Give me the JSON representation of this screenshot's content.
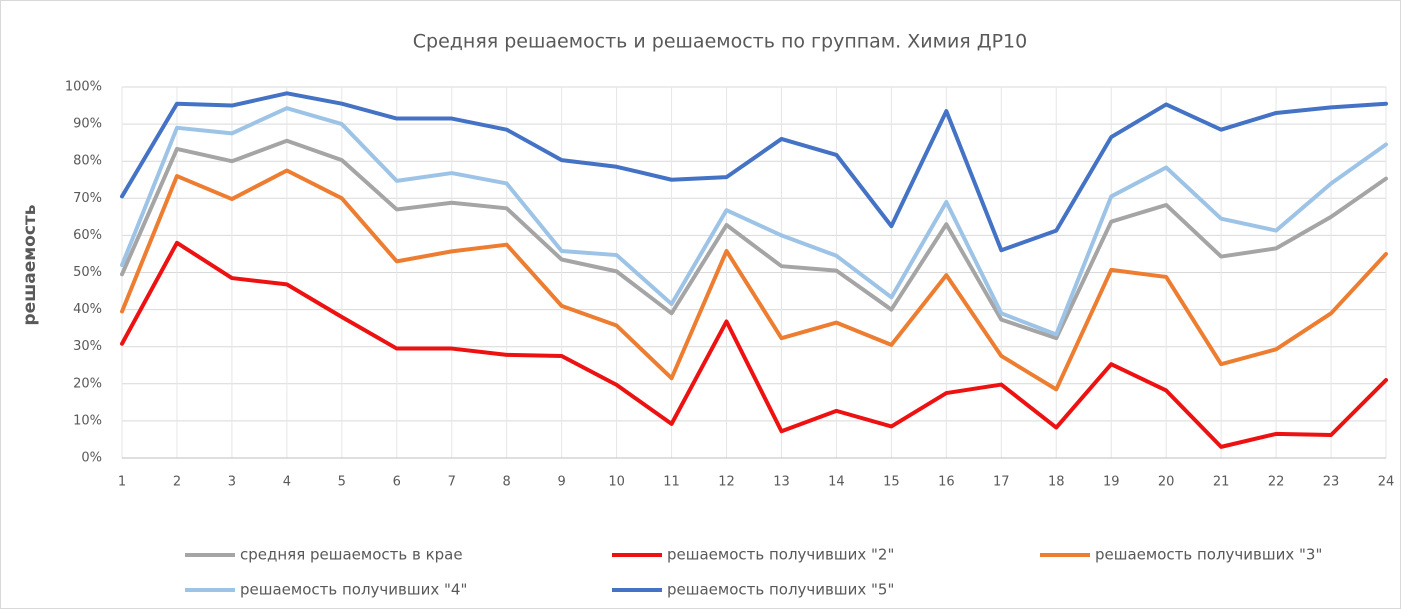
{
  "chart_data": {
    "type": "line",
    "title": "Средняя решаемость и решаемость по группам. Химия ДР10",
    "y_label": "решаемость",
    "categories": [
      "1",
      "2",
      "3",
      "4",
      "5",
      "6",
      "7",
      "8",
      "9",
      "10",
      "11",
      "12",
      "13",
      "14",
      "15",
      "16",
      "17",
      "18",
      "19",
      "20",
      "21",
      "22",
      "23",
      "24"
    ],
    "ylim": [
      0,
      100
    ],
    "yticks": [
      {
        "value": 0,
        "label": "0%"
      },
      {
        "value": 10,
        "label": "10%"
      },
      {
        "value": 20,
        "label": "20%"
      },
      {
        "value": 30,
        "label": "30%"
      },
      {
        "value": 40,
        "label": "40%"
      },
      {
        "value": 50,
        "label": "50%"
      },
      {
        "value": 60,
        "label": "60%"
      },
      {
        "value": 70,
        "label": "70%"
      },
      {
        "value": 80,
        "label": "80%"
      },
      {
        "value": 90,
        "label": "90%"
      },
      {
        "value": 100,
        "label": "100%"
      }
    ],
    "grid": true,
    "legend": "bottom",
    "series": [
      {
        "name": "средняя решаемость в крае",
        "color": "#a5a5a5",
        "values": [
          49.5,
          83.3,
          80,
          85.5,
          80.3,
          67,
          68.8,
          67.3,
          53.5,
          50.3,
          39,
          62.8,
          51.7,
          50.5,
          40,
          63,
          37.3,
          32.3,
          63.7,
          68.2,
          54.3,
          56.5,
          65,
          75.3
        ]
      },
      {
        "name": "решаемость получивших \"2\"",
        "color": "#ee1111",
        "values": [
          30.8,
          58,
          48.5,
          46.8,
          38,
          29.5,
          29.5,
          27.8,
          27.5,
          19.7,
          9.2,
          36.8,
          7.2,
          12.7,
          8.5,
          17.5,
          19.8,
          8.2,
          25.3,
          18.2,
          3,
          6.5,
          6.2,
          21
        ]
      },
      {
        "name": "решаемость получивших \"3\"",
        "color": "#ed7d31",
        "values": [
          39.5,
          76,
          69.8,
          77.5,
          70,
          53,
          55.7,
          57.5,
          41,
          35.7,
          21.5,
          55.8,
          32.3,
          36.5,
          30.5,
          49.3,
          27.5,
          18.5,
          50.7,
          48.8,
          25.3,
          29.3,
          39,
          55
        ]
      },
      {
        "name": "решаемость получивших \"4\"",
        "color": "#9dc3e6",
        "values": [
          52,
          89,
          87.5,
          94.3,
          90,
          74.7,
          76.8,
          74,
          55.8,
          54.7,
          41.5,
          66.8,
          60,
          54.5,
          43.3,
          69,
          39,
          33.3,
          70.5,
          78.3,
          64.5,
          61.3,
          74,
          84.5
        ]
      },
      {
        "name": "решаемость получивших \"5\"",
        "color": "#4472c4",
        "values": [
          70.5,
          95.5,
          95,
          98.3,
          95.5,
          91.5,
          91.5,
          88.5,
          80.3,
          78.5,
          75,
          75.7,
          86,
          81.7,
          62.5,
          93.5,
          56,
          61.3,
          86.5,
          95.3,
          88.5,
          93,
          94.5,
          95.5
        ]
      }
    ]
  }
}
